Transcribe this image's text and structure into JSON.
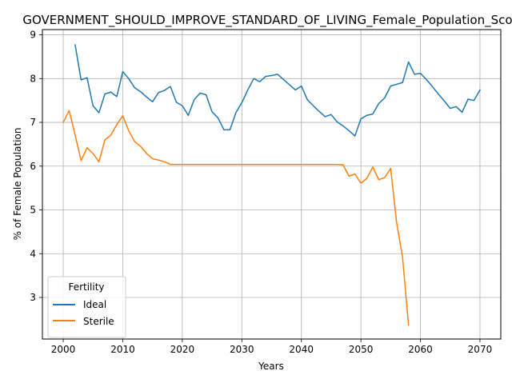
{
  "chart_data": {
    "type": "line",
    "title": "GOVERNMENT_SHOULD_IMPROVE_STANDARD_OF_LIVING_Female_Population_Score",
    "xlabel": "Years",
    "ylabel": "% of Female Population",
    "xlim": [
      1996.5,
      2073.5
    ],
    "ylim": [
      2.05,
      9.12
    ],
    "xticks": [
      2000,
      2010,
      2020,
      2030,
      2040,
      2050,
      2060,
      2070
    ],
    "yticks": [
      3,
      4,
      5,
      6,
      7,
      8,
      9
    ],
    "grid": true,
    "legend": {
      "title": "Fertility",
      "placement": "lower-left"
    },
    "series": [
      {
        "name": "Ideal",
        "color": "#1f77b4",
        "x": [
          2002,
          2003,
          2004,
          2005,
          2006,
          2007,
          2008,
          2009,
          2010,
          2011,
          2012,
          2013,
          2014,
          2015,
          2016,
          2017,
          2018,
          2019,
          2020,
          2021,
          2022,
          2023,
          2024,
          2025,
          2026,
          2027,
          2028,
          2029,
          2030,
          2031,
          2032,
          2033,
          2034,
          2035,
          2036,
          2037,
          2038,
          2039,
          2040,
          2041,
          2042,
          2043,
          2044,
          2045,
          2046,
          2047,
          2048,
          2049,
          2050,
          2051,
          2052,
          2053,
          2054,
          2055,
          2056,
          2057,
          2058,
          2059,
          2060,
          2061,
          2062,
          2063,
          2064,
          2065,
          2066,
          2067,
          2068,
          2069,
          2070
        ],
        "y": [
          8.77,
          7.97,
          8.02,
          7.38,
          7.22,
          7.65,
          7.69,
          7.59,
          8.16,
          8.0,
          7.79,
          7.7,
          7.58,
          7.47,
          7.68,
          7.73,
          7.82,
          7.46,
          7.38,
          7.16,
          7.52,
          7.67,
          7.63,
          7.24,
          7.1,
          6.83,
          6.83,
          7.22,
          7.45,
          7.74,
          8.0,
          7.93,
          8.05,
          8.07,
          8.1,
          7.98,
          7.86,
          7.74,
          7.83,
          7.52,
          7.38,
          7.25,
          7.13,
          7.18,
          7.01,
          6.92,
          6.81,
          6.69,
          7.08,
          7.16,
          7.19,
          7.43,
          7.56,
          7.83,
          7.87,
          7.91,
          8.38,
          8.1,
          8.12,
          7.98,
          7.82,
          7.65,
          7.49,
          7.32,
          7.36,
          7.23,
          7.53,
          7.5,
          7.74
        ]
      },
      {
        "name": "Sterile",
        "color": "#ff7f0e",
        "x": [
          2000,
          2001,
          2002,
          2003,
          2004,
          2005,
          2006,
          2007,
          2008,
          2009,
          2010,
          2011,
          2012,
          2013,
          2014,
          2015,
          2016,
          2017,
          2018,
          2019,
          2020,
          2021,
          2022,
          2023,
          2024,
          2025,
          2026,
          2027,
          2028,
          2029,
          2030,
          2031,
          2032,
          2033,
          2034,
          2035,
          2036,
          2037,
          2038,
          2039,
          2040,
          2041,
          2042,
          2043,
          2044,
          2045,
          2046,
          2047,
          2048,
          2049,
          2050,
          2051,
          2052,
          2053,
          2054,
          2055,
          2056,
          2057,
          2058
        ],
        "y": [
          7.0,
          7.27,
          6.71,
          6.13,
          6.42,
          6.29,
          6.1,
          6.6,
          6.71,
          6.95,
          7.15,
          6.81,
          6.56,
          6.45,
          6.29,
          6.17,
          6.14,
          6.1,
          6.04,
          6.04,
          6.04,
          6.04,
          6.04,
          6.04,
          6.04,
          6.04,
          6.04,
          6.04,
          6.04,
          6.04,
          6.04,
          6.04,
          6.04,
          6.04,
          6.04,
          6.04,
          6.04,
          6.04,
          6.04,
          6.04,
          6.04,
          6.04,
          6.04,
          6.04,
          6.04,
          6.04,
          6.04,
          6.03,
          5.77,
          5.82,
          5.61,
          5.72,
          5.98,
          5.69,
          5.74,
          5.95,
          4.71,
          3.92,
          2.37
        ]
      }
    ]
  }
}
